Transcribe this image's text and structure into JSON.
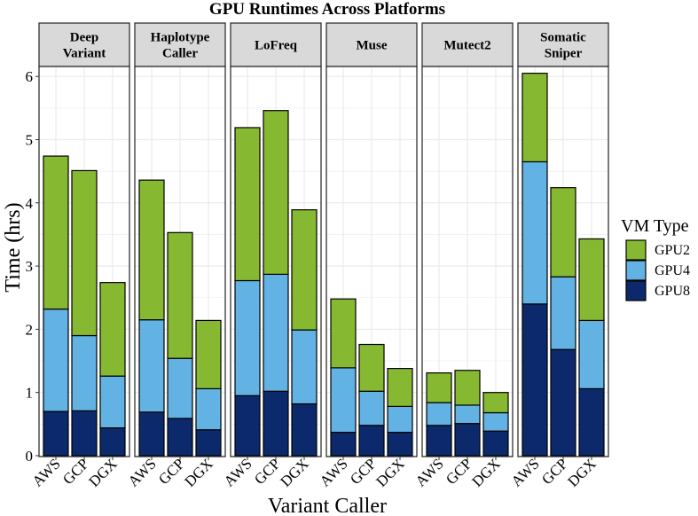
{
  "chart_data": {
    "type": "bar",
    "stacked": true,
    "title": "GPU Runtimes Across Platforms",
    "xlabel": "Variant Caller",
    "ylabel": "Time (hrs)",
    "ylim": [
      0,
      6.3
    ],
    "yticks": [
      0,
      1,
      2,
      3,
      4,
      5,
      6
    ],
    "grid": true,
    "legend": {
      "title": "VM Type",
      "position": "right",
      "entries": [
        {
          "name": "GPU2",
          "color": "#86b832"
        },
        {
          "name": "GPU4",
          "color": "#62b2e4"
        },
        {
          "name": "GPU8",
          "color": "#0c2a6b"
        }
      ]
    },
    "categories": [
      "AWS",
      "GCP",
      "DGX"
    ],
    "series_order": [
      "GPU8",
      "GPU4",
      "GPU2"
    ],
    "facets": [
      {
        "label": [
          "Deep",
          "Variant"
        ],
        "bars": [
          {
            "category": "AWS",
            "GPU8": 0.7,
            "GPU4": 2.32,
            "GPU2": 4.74
          },
          {
            "category": "GCP",
            "GPU8": 0.71,
            "GPU4": 1.9,
            "GPU2": 4.51
          },
          {
            "category": "DGX",
            "GPU8": 0.44,
            "GPU4": 1.26,
            "GPU2": 2.74
          }
        ]
      },
      {
        "label": [
          "Haplotype",
          "Caller"
        ],
        "bars": [
          {
            "category": "AWS",
            "GPU8": 0.69,
            "GPU4": 2.15,
            "GPU2": 4.36
          },
          {
            "category": "GCP",
            "GPU8": 0.59,
            "GPU4": 1.54,
            "GPU2": 3.53
          },
          {
            "category": "DGX",
            "GPU8": 0.41,
            "GPU4": 1.06,
            "GPU2": 2.14
          }
        ]
      },
      {
        "label": [
          "LoFreq"
        ],
        "bars": [
          {
            "category": "AWS",
            "GPU8": 0.95,
            "GPU4": 2.77,
            "GPU2": 5.19
          },
          {
            "category": "GCP",
            "GPU8": 1.02,
            "GPU4": 2.87,
            "GPU2": 5.46
          },
          {
            "category": "DGX",
            "GPU8": 0.82,
            "GPU4": 1.99,
            "GPU2": 3.89
          }
        ]
      },
      {
        "label": [
          "Muse"
        ],
        "bars": [
          {
            "category": "AWS",
            "GPU8": 0.37,
            "GPU4": 1.39,
            "GPU2": 2.48
          },
          {
            "category": "GCP",
            "GPU8": 0.48,
            "GPU4": 1.02,
            "GPU2": 1.76
          },
          {
            "category": "DGX",
            "GPU8": 0.37,
            "GPU4": 0.78,
            "GPU2": 1.38
          }
        ]
      },
      {
        "label": [
          "Mutect2"
        ],
        "bars": [
          {
            "category": "AWS",
            "GPU8": 0.48,
            "GPU4": 0.84,
            "GPU2": 1.31
          },
          {
            "category": "GCP",
            "GPU8": 0.51,
            "GPU4": 0.8,
            "GPU2": 1.35
          },
          {
            "category": "DGX",
            "GPU8": 0.39,
            "GPU4": 0.68,
            "GPU2": 1.0
          }
        ]
      },
      {
        "label": [
          "Somatic",
          "Sniper"
        ],
        "bars": [
          {
            "category": "AWS",
            "GPU8": 2.4,
            "GPU4": 4.65,
            "GPU2": 6.05
          },
          {
            "category": "GCP",
            "GPU8": 1.68,
            "GPU4": 2.83,
            "GPU2": 4.24
          },
          {
            "category": "DGX",
            "GPU8": 1.06,
            "GPU4": 2.14,
            "GPU2": 3.43
          }
        ]
      }
    ]
  }
}
